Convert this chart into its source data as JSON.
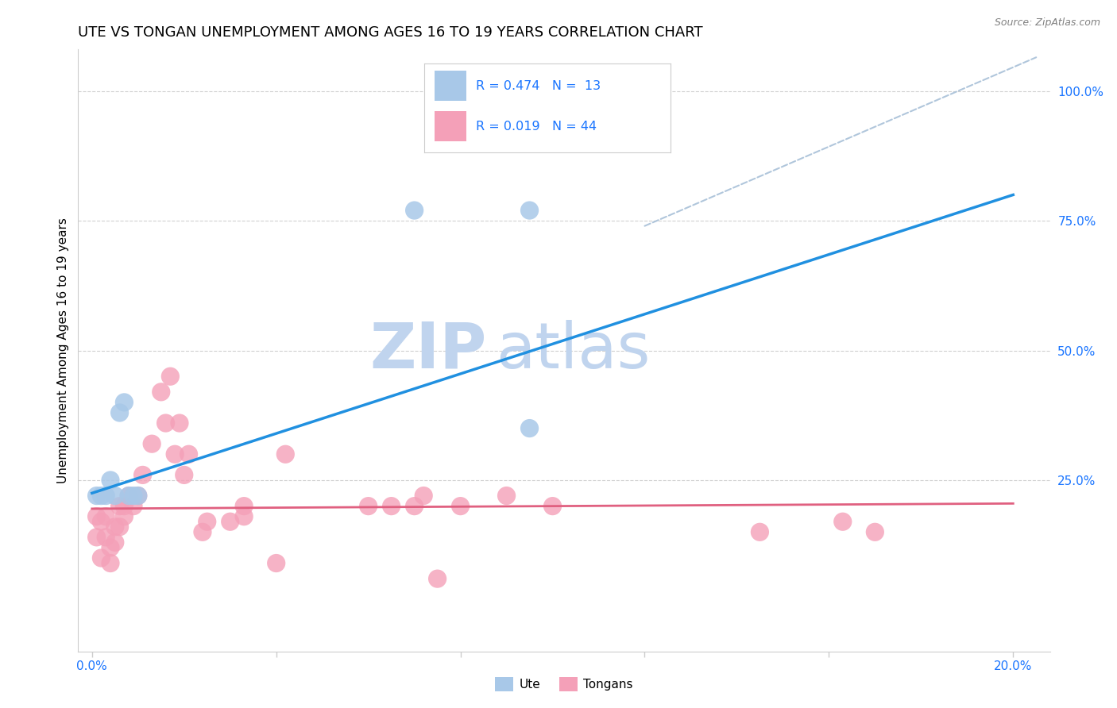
{
  "title": "UTE VS TONGAN UNEMPLOYMENT AMONG AGES 16 TO 19 YEARS CORRELATION CHART",
  "source": "Source: ZipAtlas.com",
  "ylabel": "Unemployment Among Ages 16 to 19 years",
  "xlim": [
    -0.003,
    0.208
  ],
  "ylim": [
    -0.08,
    1.08
  ],
  "ute_R": 0.474,
  "ute_N": 13,
  "tongans_R": 0.019,
  "tongans_N": 44,
  "ute_color": "#a8c8e8",
  "tongans_color": "#f4a0b8",
  "ute_line_color": "#2090e0",
  "tongans_line_color": "#e06080",
  "ref_line_color": "#a8c0d8",
  "watermark_zip_color": "#c0d4ee",
  "watermark_atlas_color": "#c0d4ee",
  "background_color": "#ffffff",
  "ute_line_x0": 0.0,
  "ute_line_y0": 0.225,
  "ute_line_x1": 0.2,
  "ute_line_y1": 0.8,
  "tongans_line_x0": 0.0,
  "tongans_line_y0": 0.195,
  "tongans_line_x1": 0.2,
  "tongans_line_y1": 0.205,
  "ref_line_x0": 0.12,
  "ref_line_y0": 0.74,
  "ref_line_x1": 0.205,
  "ref_line_y1": 1.065,
  "ute_points_x": [
    0.001,
    0.002,
    0.003,
    0.004,
    0.005,
    0.006,
    0.007,
    0.008,
    0.009,
    0.01,
    0.07,
    0.095,
    0.095
  ],
  "ute_points_y": [
    0.22,
    0.22,
    0.22,
    0.25,
    0.22,
    0.38,
    0.4,
    0.22,
    0.22,
    0.22,
    0.77,
    0.35,
    0.77
  ],
  "tongans_points_x": [
    0.001,
    0.001,
    0.002,
    0.002,
    0.003,
    0.003,
    0.004,
    0.004,
    0.005,
    0.005,
    0.006,
    0.006,
    0.007,
    0.007,
    0.008,
    0.009,
    0.01,
    0.011,
    0.013,
    0.015,
    0.016,
    0.017,
    0.018,
    0.019,
    0.02,
    0.021,
    0.024,
    0.025,
    0.03,
    0.033,
    0.033,
    0.04,
    0.042,
    0.06,
    0.065,
    0.07,
    0.072,
    0.075,
    0.08,
    0.09,
    0.1,
    0.145,
    0.163,
    0.17
  ],
  "tongans_points_y": [
    0.18,
    0.14,
    0.17,
    0.1,
    0.18,
    0.14,
    0.12,
    0.09,
    0.16,
    0.13,
    0.2,
    0.16,
    0.18,
    0.2,
    0.22,
    0.2,
    0.22,
    0.26,
    0.32,
    0.42,
    0.36,
    0.45,
    0.3,
    0.36,
    0.26,
    0.3,
    0.15,
    0.17,
    0.17,
    0.18,
    0.2,
    0.09,
    0.3,
    0.2,
    0.2,
    0.2,
    0.22,
    0.06,
    0.2,
    0.22,
    0.2,
    0.15,
    0.17,
    0.15
  ],
  "legend_text_color": "#1a75ff",
  "title_fontsize": 13,
  "axis_label_fontsize": 11,
  "tick_fontsize": 11
}
